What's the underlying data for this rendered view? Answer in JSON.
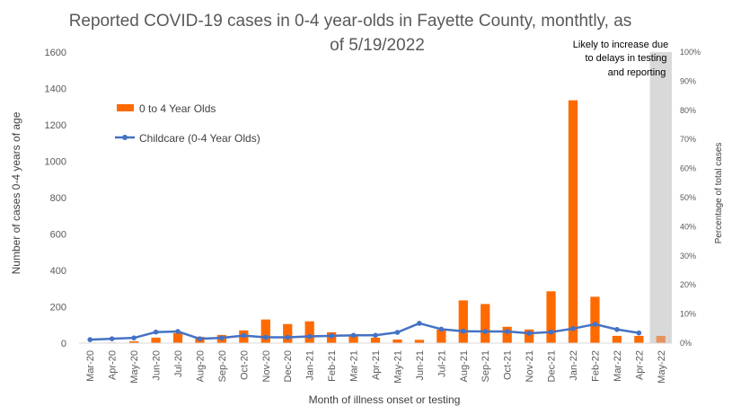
{
  "chart_data": {
    "type": "bar",
    "title_line1": "Reported COVID-19 cases in 0-4 year-olds in Fayette County, monthtly, as",
    "title_line2": "of 5/19/2022",
    "xlabel": "Month of illness onset or testing",
    "ylabel": "Number of cases 0-4 years of age",
    "ylabel_right": "Percentage of total cases",
    "ylim": [
      0,
      1600
    ],
    "ylim_right": [
      0,
      100
    ],
    "yticks": [
      "0",
      "200",
      "400",
      "600",
      "800",
      "1000",
      "1200",
      "1400",
      "1600"
    ],
    "yticks_right": [
      "0%",
      "10%",
      "20%",
      "30%",
      "40%",
      "50%",
      "60%",
      "70%",
      "80%",
      "90%",
      "100%"
    ],
    "categories": [
      "Mar-20",
      "Apr-20",
      "May-20",
      "Jun-20",
      "Jul-20",
      "Aug-20",
      "Sep-20",
      "Oct-20",
      "Nov-20",
      "Dec-20",
      "Jan-21",
      "Feb-21",
      "Mar-21",
      "Apr-21",
      "May-21",
      "Jun-21",
      "Jul-21",
      "Aug-21",
      "Sep-21",
      "Oct-21",
      "Nov-21",
      "Dec-21",
      "Jan-22",
      "Feb-22",
      "Mar-22",
      "Apr-22",
      "May-22"
    ],
    "series": [
      {
        "name": "0 to 4 Year Olds",
        "kind": "bar",
        "axis": "left",
        "color": "#FF6A00",
        "values": [
          2,
          3,
          10,
          30,
          55,
          35,
          45,
          70,
          130,
          105,
          120,
          60,
          45,
          30,
          20,
          18,
          75,
          235,
          215,
          90,
          75,
          285,
          1335,
          255,
          40,
          40,
          null
        ]
      },
      {
        "name": "Childcare (0-4 Year Olds)",
        "kind": "line",
        "axis": "right",
        "color": "#4472C4",
        "values": [
          1.2,
          1.5,
          1.8,
          3.8,
          4.0,
          1.5,
          1.8,
          2.6,
          2.0,
          2.0,
          2.3,
          2.5,
          2.7,
          2.7,
          3.7,
          6.8,
          4.8,
          4.1,
          4.0,
          4.0,
          3.4,
          3.8,
          5.0,
          6.5,
          4.7,
          3.5,
          null
        ]
      }
    ],
    "shaded_category": "May-22",
    "shaded_bar_value": 40,
    "shaded_color": "#D9D9D9",
    "shaded_bar_color": "#E8935E",
    "annotation_lines": [
      "Likely to increase due",
      "to delays in testing",
      "and reporting"
    ],
    "legend_position": "upper-left inside plot",
    "grid": false
  }
}
